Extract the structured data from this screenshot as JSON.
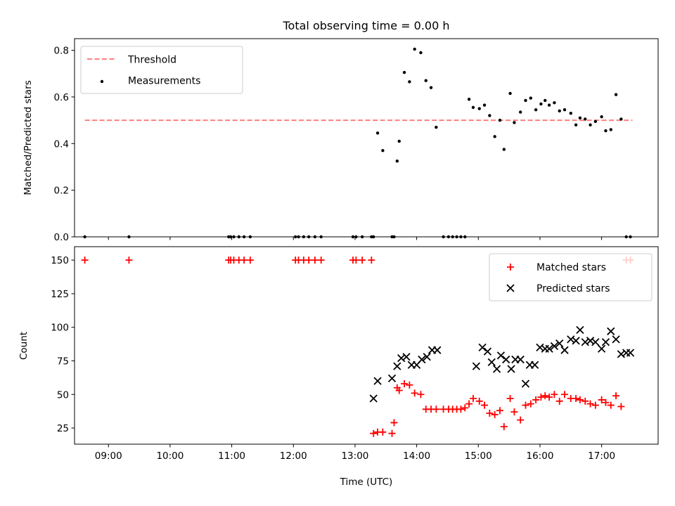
{
  "chart_data": [
    {
      "type": "line",
      "title": "Total observing time = 0.00 h",
      "xlabel": "",
      "ylabel": "Matched/Predicted stars",
      "xlim": [
        "08:27",
        "17:55"
      ],
      "ylim": [
        0,
        0.85
      ],
      "yticks": [
        0.0,
        0.2,
        0.4,
        0.6,
        0.8
      ],
      "ytick_labels": [
        "0.0",
        "0.2",
        "0.4",
        "0.6",
        "0.8"
      ],
      "legend_position": "upper-left",
      "grid": false,
      "series": [
        {
          "name": "Threshold",
          "style": "dashed",
          "color": "#ff7f7f",
          "x": [
            "08:37",
            "17:30"
          ],
          "y": [
            0.5,
            0.5
          ]
        },
        {
          "name": "Measurements",
          "style": "scatter",
          "color": "#000000",
          "x": [
            "08:37",
            "09:20",
            "10:57",
            "10:59",
            "11:02",
            "11:07",
            "11:12",
            "11:18",
            "12:02",
            "12:05",
            "12:10",
            "12:15",
            "12:21",
            "12:27",
            "12:58",
            "13:01",
            "13:07",
            "13:16",
            "13:18",
            "13:22",
            "13:27",
            "13:36",
            "13:38",
            "13:41",
            "13:43",
            "13:48",
            "13:53",
            "13:58",
            "14:04",
            "14:09",
            "14:14",
            "14:19",
            "14:26",
            "14:31",
            "14:35",
            "14:39",
            "14:43",
            "14:47",
            "14:51",
            "14:55",
            "15:01",
            "15:06",
            "15:11",
            "15:16",
            "15:21",
            "15:25",
            "15:31",
            "15:35",
            "15:41",
            "15:46",
            "15:51",
            "15:56",
            "16:01",
            "16:05",
            "16:09",
            "16:14",
            "16:19",
            "16:24",
            "16:30",
            "16:35",
            "16:39",
            "16:44",
            "16:49",
            "16:54",
            "17:00",
            "17:04",
            "17:09",
            "17:14",
            "17:19",
            "17:24",
            "17:28"
          ],
          "y": [
            0.0,
            0.0,
            0.0,
            0.0,
            0.0,
            0.0,
            0.0,
            0.0,
            0.0,
            0.0,
            0.0,
            0.0,
            0.0,
            0.0,
            0.0,
            0.0,
            0.0,
            0.0,
            0.0,
            0.445,
            0.37,
            0.0,
            0.0,
            0.325,
            0.41,
            0.705,
            0.665,
            0.805,
            0.79,
            0.67,
            0.64,
            0.47,
            0.0,
            0.0,
            0.0,
            0.0,
            0.0,
            0.0,
            0.59,
            0.555,
            0.55,
            0.565,
            0.52,
            0.43,
            0.5,
            0.375,
            0.615,
            0.49,
            0.535,
            0.585,
            0.595,
            0.545,
            0.57,
            0.585,
            0.565,
            0.575,
            0.54,
            0.545,
            0.53,
            0.48,
            0.51,
            0.505,
            0.48,
            0.495,
            0.515,
            0.455,
            0.46,
            0.61,
            0.505,
            0.0,
            0.0
          ]
        }
      ]
    },
    {
      "type": "scatter",
      "title": "",
      "xlabel": "Time (UTC)",
      "ylabel": "Count",
      "xlim": [
        "08:27",
        "17:55"
      ],
      "ylim": [
        13,
        160
      ],
      "xticks": [
        "09:00",
        "10:00",
        "11:00",
        "12:00",
        "13:00",
        "14:00",
        "15:00",
        "16:00",
        "17:00"
      ],
      "yticks": [
        25,
        50,
        75,
        100,
        125,
        150
      ],
      "ytick_labels": [
        "25",
        "50",
        "75",
        "100",
        "125",
        "150"
      ],
      "legend_position": "upper-right",
      "grid": false,
      "series": [
        {
          "name": "Matched stars",
          "marker": "+",
          "color": "#ff0000",
          "x": [
            "08:37",
            "09:20",
            "10:57",
            "10:59",
            "11:02",
            "11:07",
            "11:12",
            "11:18",
            "12:02",
            "12:05",
            "12:10",
            "12:15",
            "12:21",
            "12:27",
            "12:58",
            "13:01",
            "13:07",
            "13:16",
            "13:18",
            "13:22",
            "13:27",
            "13:36",
            "13:38",
            "13:41",
            "13:43",
            "13:48",
            "13:53",
            "13:58",
            "14:04",
            "14:09",
            "14:14",
            "14:19",
            "14:26",
            "14:31",
            "14:35",
            "14:39",
            "14:43",
            "14:47",
            "14:51",
            "14:55",
            "15:01",
            "15:06",
            "15:11",
            "15:16",
            "15:21",
            "15:25",
            "15:31",
            "15:35",
            "15:41",
            "15:46",
            "15:51",
            "15:56",
            "16:01",
            "16:05",
            "16:09",
            "16:14",
            "16:19",
            "16:24",
            "16:30",
            "16:35",
            "16:39",
            "16:44",
            "16:49",
            "16:54",
            "17:00",
            "17:04",
            "17:09",
            "17:14",
            "17:19",
            "17:24",
            "17:28"
          ],
          "y": [
            150,
            150,
            150,
            150,
            150,
            150,
            150,
            150,
            150,
            150,
            150,
            150,
            150,
            150,
            150,
            150,
            150,
            150,
            21,
            22,
            22,
            21,
            29,
            55,
            53,
            58,
            57,
            51,
            50,
            39,
            39,
            39,
            39,
            39,
            39,
            39,
            39,
            40,
            43,
            47,
            45,
            42,
            36,
            35,
            38,
            26,
            47,
            37,
            31,
            42,
            43,
            46,
            48,
            49,
            48,
            50,
            45,
            50,
            47,
            47,
            46,
            45,
            43,
            42,
            46,
            44,
            42,
            49,
            41,
            150,
            150
          ]
        },
        {
          "name": "Predicted stars",
          "marker": "x",
          "color": "#000000",
          "x": [
            "13:18",
            "13:22",
            "13:36",
            "13:41",
            "13:45",
            "13:50",
            "13:55",
            "14:00",
            "14:05",
            "14:10",
            "14:15",
            "14:20",
            "14:58",
            "15:04",
            "15:09",
            "15:13",
            "15:18",
            "15:22",
            "15:27",
            "15:32",
            "15:36",
            "15:41",
            "15:46",
            "15:50",
            "15:55",
            "16:00",
            "16:05",
            "16:09",
            "16:14",
            "16:19",
            "16:24",
            "16:30",
            "16:35",
            "16:39",
            "16:44",
            "16:49",
            "16:54",
            "17:00",
            "17:04",
            "17:09",
            "17:14",
            "17:19",
            "17:24",
            "17:28"
          ],
          "y": [
            47,
            60,
            62,
            71,
            77,
            78,
            72,
            72,
            76,
            78,
            83,
            83,
            71,
            85,
            82,
            74,
            69,
            79,
            76,
            69,
            76,
            76,
            58,
            72,
            72,
            85,
            84,
            84,
            86,
            88,
            83,
            91,
            90,
            98,
            89,
            90,
            89,
            84,
            89,
            97,
            91,
            80,
            81,
            81
          ]
        }
      ]
    }
  ]
}
